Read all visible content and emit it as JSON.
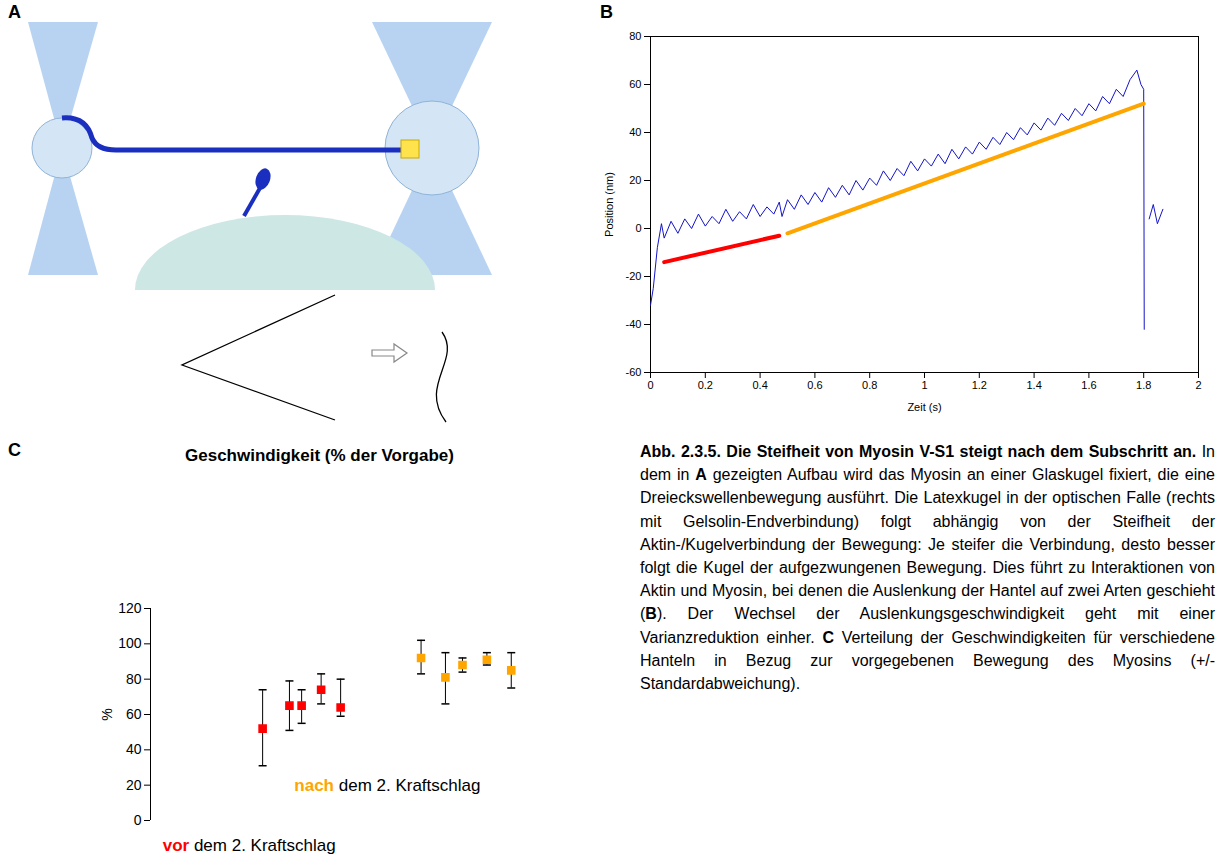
{
  "diagram": {
    "panel": "A"
  },
  "chart_data": [
    {
      "panel": "B",
      "type": "line",
      "x_label": "Zeit (s)",
      "y_label": "Position (nm)",
      "xlim": [
        0,
        2
      ],
      "xticks": [
        0,
        0.2,
        0.4,
        0.6,
        0.8,
        1,
        1.2,
        1.4,
        1.6,
        1.8,
        2
      ],
      "ylim": [
        -60,
        80
      ],
      "yticks": [
        -60,
        -40,
        -20,
        0,
        20,
        40,
        60,
        80
      ],
      "grid": false,
      "series": [
        {
          "color": "#1414c8",
          "x": [
            0,
            0.01,
            0.025,
            0.04,
            0.05,
            0.075,
            0.1,
            0.125,
            0.15,
            0.175,
            0.2,
            0.225,
            0.25,
            0.275,
            0.3,
            0.325,
            0.35,
            0.375,
            0.4,
            0.425,
            0.45,
            0.47,
            0.48,
            0.5,
            0.525,
            0.55,
            0.575,
            0.6,
            0.625,
            0.65,
            0.675,
            0.7,
            0.725,
            0.75,
            0.775,
            0.8,
            0.825,
            0.85,
            0.875,
            0.9,
            0.925,
            0.95,
            0.975,
            1.0,
            1.025,
            1.05,
            1.075,
            1.1,
            1.125,
            1.15,
            1.175,
            1.2,
            1.225,
            1.25,
            1.275,
            1.3,
            1.325,
            1.35,
            1.375,
            1.4,
            1.425,
            1.45,
            1.475,
            1.5,
            1.525,
            1.55,
            1.575,
            1.6,
            1.625,
            1.65,
            1.675,
            1.7,
            1.725,
            1.75,
            1.775,
            1.79,
            1.8,
            1.802,
            1.81,
            1.82,
            1.835,
            1.85,
            1.87
          ],
          "values": [
            -32,
            -25,
            -8,
            2,
            -4,
            3,
            -2,
            4,
            0,
            6,
            1,
            5,
            2,
            8,
            3,
            7,
            4,
            10,
            5,
            9,
            6,
            11,
            5,
            12,
            8,
            14,
            10,
            15,
            11,
            17,
            13,
            18,
            14,
            20,
            16,
            21,
            18,
            24,
            20,
            25,
            22,
            28,
            24,
            29,
            26,
            31,
            27,
            33,
            29,
            34,
            31,
            36,
            33,
            38,
            35,
            40,
            37,
            42,
            39,
            44,
            41,
            46,
            43,
            48,
            45,
            50,
            47,
            52,
            49,
            55,
            52,
            58,
            55,
            62,
            66,
            60,
            58,
            -42,
            null,
            4,
            10,
            2,
            8
          ]
        },
        {
          "color": "#ff0000",
          "x": [
            0.05,
            0.47
          ],
          "values": [
            -14,
            -3
          ]
        },
        {
          "color": "#ffa500",
          "x": [
            0.5,
            1.8
          ],
          "values": [
            -2,
            52
          ]
        }
      ]
    },
    {
      "panel": "C",
      "type": "scatter",
      "title": "Geschwindigkeit (% der Vorgabe)",
      "y_label": "%",
      "xlim": [
        0,
        16
      ],
      "ylim": [
        0,
        120
      ],
      "yticks": [
        0,
        20,
        40,
        60,
        80,
        100,
        120
      ],
      "tick_labels": "y",
      "marker": "square",
      "grid": false,
      "series": [
        {
          "color": "#ff0000",
          "x": [
            4.6,
            5.7,
            6.2,
            7.0,
            7.8
          ],
          "values": [
            52,
            65,
            65,
            74,
            64
          ],
          "lower": [
            31,
            51,
            55,
            66,
            59
          ],
          "upper": [
            74,
            79,
            74,
            83,
            80
          ]
        },
        {
          "color": "#ffa500",
          "x": [
            11.1,
            12.1,
            12.8,
            13.8,
            14.8
          ],
          "values": [
            92,
            81,
            88,
            91,
            85
          ],
          "lower": [
            83,
            66,
            84,
            88,
            75
          ],
          "upper": [
            102,
            95,
            92,
            95,
            95
          ]
        }
      ],
      "annotations": [
        {
          "text": "nach dem 2. Kraftschlag",
          "highlight": "nach",
          "color": "#ffa500",
          "x": 5.9,
          "y": 20
        },
        {
          "text": "vor dem 2. Kraftschlag",
          "highlight": "vor",
          "color": "#ff0000",
          "x": 0.5,
          "y": -14
        }
      ]
    }
  ],
  "caption": {
    "heading": "Abb. 2.3.5. Die Steifheit von Myosin V-S1 steigt nach dem Subschritt an.",
    "body": [
      {
        "text": "In dem in ",
        "bold": false
      },
      {
        "text": "A",
        "bold": true
      },
      {
        "text": " gezeigten Aufbau wird das Myosin an einer Glaskugel fixiert, die eine Dreieckswellenbewegung ausführt. Die Latexkugel in der optischen Falle (rechts mit Gelsolin-Endverbindung) folgt abhängig von der Steifheit der Aktin-/Kugelverbindung der Bewegung: Je steifer die Verbindung, desto besser folgt die Kugel der aufgezwungenen Bewegung. Dies führt zu Interaktionen von Aktin und Myosin, bei denen die Auslenkung der Hantel auf zwei Arten geschieht (",
        "bold": false
      },
      {
        "text": "B",
        "bold": true
      },
      {
        "text": "). Der Wechsel der Auslenkungsgeschwindigkeit geht mit einer Varianzreduktion einher. ",
        "bold": false
      },
      {
        "text": "C",
        "bold": true
      },
      {
        "text": " Verteilung der Geschwindigkeiten für verschiedene Hanteln in Bezug zur vorgegebenen Bewegung des Myosins (+/- Standardabweichung).",
        "bold": false
      }
    ]
  }
}
